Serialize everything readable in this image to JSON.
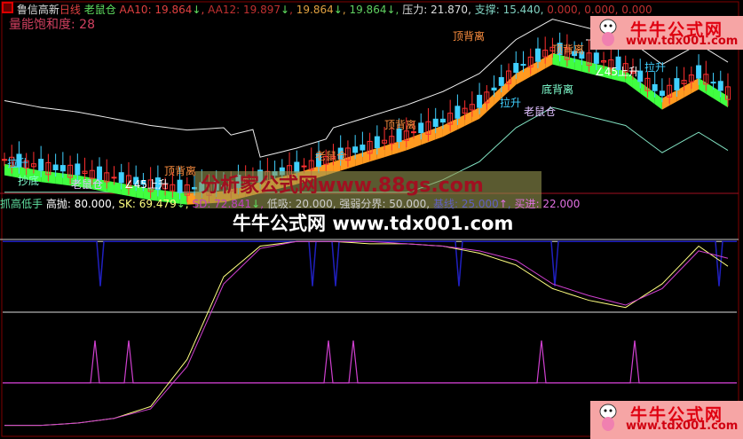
{
  "header": {
    "stock": "鲁信高新",
    "period": "日线",
    "formula": "老鼠仓",
    "items": [
      {
        "label": "AA10",
        "value": "19.864",
        "arrow": "↓",
        "color": "#e04040"
      },
      {
        "label": "AA12",
        "value": "19.897",
        "arrow": "↓",
        "color": "#c03030"
      },
      {
        "label": "",
        "value": "19.864",
        "arrow": "↓",
        "color": "#e0a040"
      },
      {
        "label": "",
        "value": "19.864",
        "arrow": "↓",
        "color": "#60d060"
      }
    ],
    "pressure_label": "压力",
    "pressure": "21.870",
    "support_label": "支撑",
    "support": "15.440",
    "extra": [
      "0.000",
      "0.000",
      "0.000"
    ]
  },
  "volume_saturation": {
    "label": "量能饱和度",
    "value": "28"
  },
  "signals": [
    "顶背离",
    "顶背离",
    "顶背离",
    "顶背离",
    "老鼠仓",
    "老鼠仓",
    "老鼠仓",
    "∠45上升",
    "∠45上升",
    "拉升",
    "拉升",
    "拉升",
    "底背离",
    "抄底"
  ],
  "indicator": {
    "name": "抓高低手",
    "sell_label": "高抛",
    "sell": "80.000",
    "sk_label": "SK",
    "sk": "69.479",
    "sk_arrow": "↓",
    "sd_label": "SD",
    "sd": "72.841",
    "sd_arrow": "↓",
    "buy_label": "低吸",
    "buy": "20.000",
    "mid_label": "强弱分界",
    "mid": "50.000",
    "base_label": "基线",
    "base": "25.000",
    "base_arrow": "↑",
    "enter_label": "买进",
    "enter": "22.000"
  },
  "watermarks": {
    "w1": "分析家公式网www.88gs.com",
    "w2_name": "牛牛公式网",
    "w2_url": "www.tdx001.com"
  },
  "logo": {
    "name": "牛牛公式网",
    "url": "www.tdx001.com"
  },
  "colors": {
    "up": "#ff3030",
    "down": "#40d0ff",
    "band_orange": "#ff9a20",
    "band_green": "#40ff40",
    "sk": "#ffff80",
    "sd": "#d040d0"
  },
  "chart_data": [
    {
      "type": "candlestick",
      "title": "鲁信高新 日线",
      "ylim": [
        15.0,
        23.5
      ],
      "x": [
        0,
        5,
        10,
        15,
        20,
        25,
        30,
        35,
        40,
        45,
        50,
        55,
        60,
        65,
        70,
        75,
        80,
        85,
        90,
        95,
        99
      ],
      "close": [
        16.5,
        16.2,
        16.0,
        15.7,
        15.4,
        15.2,
        15.3,
        15.7,
        16.1,
        16.6,
        17.1,
        17.6,
        18.2,
        19.0,
        20.5,
        21.4,
        21.0,
        20.6,
        19.4,
        20.3,
        19.5
      ],
      "pressure": 21.87,
      "support": 15.44
    },
    {
      "type": "line",
      "title": "抓高低手",
      "ylim": [
        0,
        100
      ],
      "x": [
        0,
        5,
        10,
        15,
        20,
        25,
        30,
        35,
        40,
        45,
        50,
        55,
        60,
        65,
        70,
        75,
        80,
        85,
        90,
        95,
        99
      ],
      "series": [
        {
          "name": "SK",
          "values": [
            2,
            2,
            3,
            5,
            10,
            30,
            65,
            78,
            80,
            80,
            79,
            79,
            78,
            75,
            70,
            60,
            55,
            52,
            62,
            78,
            69.479
          ]
        },
        {
          "name": "SD",
          "values": [
            2,
            2,
            3,
            5,
            9,
            27,
            62,
            77,
            80,
            80,
            80,
            79,
            78,
            76,
            72,
            62,
            57,
            53,
            60,
            76,
            72.841
          ]
        }
      ],
      "hlines": [
        80,
        50,
        20
      ]
    }
  ]
}
